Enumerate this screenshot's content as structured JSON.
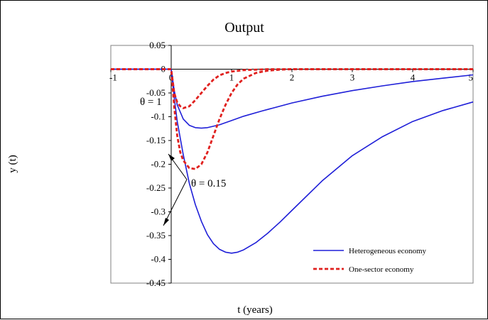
{
  "chart_data": {
    "type": "line",
    "title": "Output",
    "xlabel": "t (years)",
    "ylabel": "y (t)",
    "xlim": [
      -1,
      5
    ],
    "ylim": [
      -0.45,
      0.05
    ],
    "x_ticks": [
      -1,
      0,
      1,
      2,
      3,
      4,
      5
    ],
    "y_ticks": [
      0.05,
      0,
      -0.05,
      -0.1,
      -0.15,
      -0.2,
      -0.25,
      -0.3,
      -0.35,
      -0.4,
      -0.45
    ],
    "x_tick_labels": [
      "-1",
      "0",
      "1",
      "2",
      "3",
      "4",
      "5"
    ],
    "y_tick_labels": [
      "0.05",
      "0",
      "-0.05",
      "-0.1",
      "-0.15",
      "-0.2",
      "-0.25",
      "-0.3",
      "-0.35",
      "-0.4",
      "-0.45"
    ],
    "grid": false,
    "legend_position": "bottom-right",
    "legend": [
      {
        "label": "Heterogeneous economy",
        "color": "#1f1fd8",
        "dash": "solid"
      },
      {
        "label": "One-sector economy",
        "color": "#e0201e",
        "dash": "dashed"
      }
    ],
    "series": [
      {
        "name": "Heterogeneous economy",
        "case": "θ = 1",
        "color": "#1f1fd8",
        "dash": "solid",
        "x": [
          -1,
          0,
          0.05,
          0.1,
          0.2,
          0.3,
          0.4,
          0.5,
          0.6,
          0.8,
          1.0,
          1.2,
          1.5,
          2.0,
          2.5,
          3.0,
          3.5,
          4.0,
          4.5,
          5.0
        ],
        "y": [
          0,
          0,
          -0.045,
          -0.075,
          -0.105,
          -0.118,
          -0.123,
          -0.124,
          -0.123,
          -0.117,
          -0.108,
          -0.099,
          -0.088,
          -0.071,
          -0.057,
          -0.045,
          -0.035,
          -0.026,
          -0.019,
          -0.012
        ]
      },
      {
        "name": "Heterogeneous economy",
        "case": "θ = 0.15",
        "color": "#1f1fd8",
        "dash": "solid",
        "x": [
          -1,
          0,
          0.05,
          0.1,
          0.2,
          0.3,
          0.4,
          0.5,
          0.6,
          0.7,
          0.8,
          0.9,
          1.0,
          1.1,
          1.2,
          1.4,
          1.6,
          1.8,
          2.0,
          2.5,
          3.0,
          3.5,
          4.0,
          4.5,
          5.0
        ],
        "y": [
          0,
          0,
          -0.06,
          -0.11,
          -0.18,
          -0.24,
          -0.285,
          -0.32,
          -0.348,
          -0.367,
          -0.379,
          -0.385,
          -0.387,
          -0.385,
          -0.38,
          -0.365,
          -0.345,
          -0.322,
          -0.297,
          -0.235,
          -0.182,
          -0.142,
          -0.11,
          -0.087,
          -0.069
        ]
      },
      {
        "name": "One-sector economy",
        "case": "θ = 1",
        "color": "#e0201e",
        "dash": "dashed",
        "x": [
          -1,
          0,
          0.05,
          0.1,
          0.15,
          0.2,
          0.3,
          0.4,
          0.5,
          0.6,
          0.7,
          0.8,
          0.9,
          1.0,
          1.2,
          1.4,
          1.6,
          1.8,
          2.0,
          2.5,
          5.0
        ],
        "y": [
          0,
          0,
          -0.05,
          -0.07,
          -0.078,
          -0.082,
          -0.078,
          -0.065,
          -0.05,
          -0.035,
          -0.022,
          -0.013,
          -0.008,
          -0.005,
          -0.002,
          -0.001,
          0,
          0,
          0,
          0,
          0
        ]
      },
      {
        "name": "One-sector economy",
        "case": "θ = 0.15",
        "color": "#e0201e",
        "dash": "dashed",
        "x": [
          -1,
          0,
          0.05,
          0.1,
          0.15,
          0.2,
          0.3,
          0.4,
          0.5,
          0.6,
          0.7,
          0.8,
          0.9,
          1.0,
          1.1,
          1.2,
          1.4,
          1.6,
          1.8,
          2.0,
          2.5,
          5.0
        ],
        "y": [
          0,
          0,
          -0.08,
          -0.14,
          -0.175,
          -0.192,
          -0.208,
          -0.21,
          -0.2,
          -0.175,
          -0.14,
          -0.105,
          -0.075,
          -0.05,
          -0.032,
          -0.02,
          -0.008,
          -0.003,
          -0.001,
          0,
          0,
          0
        ]
      }
    ],
    "annotations": [
      {
        "text": "θ = 1",
        "points_to": "θ = 1 curves"
      },
      {
        "text": "θ = 0.15",
        "points_to": "θ = 0.15 curves"
      }
    ]
  }
}
